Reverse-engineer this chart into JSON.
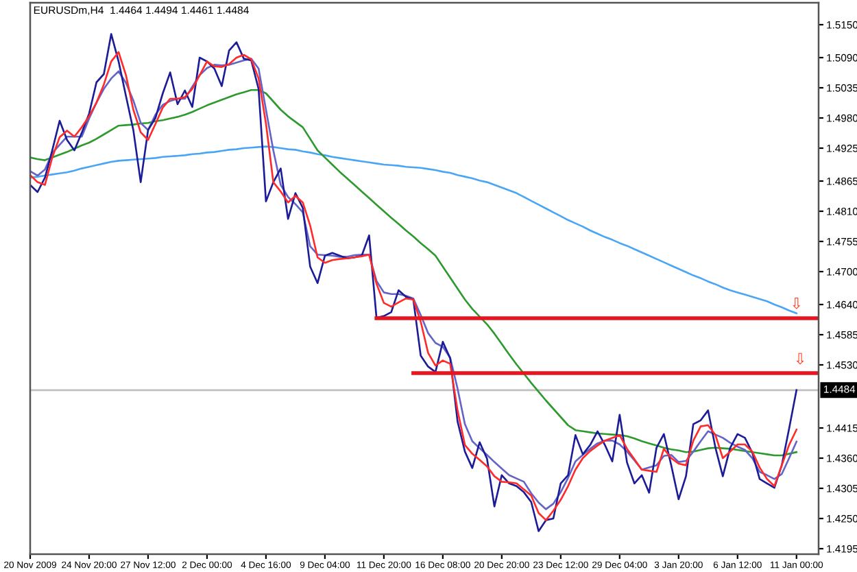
{
  "chart_data": {
    "type": "line",
    "title": "EURUSDm,H4  1.4464 1.4494 1.4461 1.4484",
    "categories": [
      "20 Nov 2009",
      null,
      null,
      null,
      null,
      null,
      null,
      null,
      "24 Nov 20:00",
      null,
      null,
      null,
      null,
      null,
      null,
      null,
      "27 Nov 12:00",
      null,
      null,
      null,
      null,
      null,
      null,
      null,
      "2 Dec 00:00",
      null,
      null,
      null,
      null,
      null,
      null,
      null,
      "4 Dec 16:00",
      null,
      null,
      null,
      null,
      null,
      null,
      null,
      "9 Dec 04:00",
      null,
      null,
      null,
      null,
      null,
      null,
      null,
      "11 Dec 20:00",
      null,
      null,
      null,
      null,
      null,
      null,
      null,
      "16 Dec 08:00",
      null,
      null,
      null,
      null,
      null,
      null,
      null,
      "20 Dec 20:00",
      null,
      null,
      null,
      null,
      null,
      null,
      null,
      "23 Dec 12:00",
      null,
      null,
      null,
      null,
      null,
      null,
      null,
      "29 Dec 04:00",
      null,
      null,
      null,
      null,
      null,
      null,
      null,
      "3 Jan 20:00",
      null,
      null,
      null,
      null,
      null,
      null,
      null,
      "6 Jan 12:00",
      null,
      null,
      null,
      null,
      null,
      null,
      null,
      "11 Jan 00:00",
      null,
      null,
      null
    ],
    "ylim": [
      1.4185,
      1.519
    ],
    "yticks": [
      {
        "value": 1.515,
        "label": "1.5150"
      },
      {
        "value": 1.509,
        "label": "1.5090"
      },
      {
        "value": 1.5035,
        "label": "1.5035"
      },
      {
        "value": 1.498,
        "label": "1.4980"
      },
      {
        "value": 1.4925,
        "label": "1.4925"
      },
      {
        "value": 1.4865,
        "label": "1.4865"
      },
      {
        "value": 1.481,
        "label": "1.4810"
      },
      {
        "value": 1.4755,
        "label": "1.4755"
      },
      {
        "value": 1.47,
        "label": "1.4700"
      },
      {
        "value": 1.464,
        "label": "1.4640"
      },
      {
        "value": 1.4585,
        "label": "1.4585"
      },
      {
        "value": 1.453,
        "label": "1.4530"
      },
      {
        "value": 1.4415,
        "label": "1.4415"
      },
      {
        "value": 1.436,
        "label": "1.4360"
      },
      {
        "value": 1.4305,
        "label": "1.4305"
      },
      {
        "value": 1.425,
        "label": "1.4250"
      },
      {
        "value": 1.4195,
        "label": "1.4195"
      }
    ],
    "series": [
      {
        "color": "#4aa6f5",
        "values": [
          1.4871,
          1.4873,
          1.4875,
          1.4877,
          1.4879,
          1.4881,
          1.4884,
          1.4888,
          1.4891,
          1.4894,
          1.4897,
          1.49,
          1.4902,
          1.4903,
          1.4904,
          1.4905,
          1.4906,
          1.4907,
          1.4909,
          1.491,
          1.4911,
          1.4912,
          1.4914,
          1.4915,
          1.4917,
          1.4918,
          1.492,
          1.4922,
          1.4923,
          1.4925,
          1.4926,
          1.4927,
          1.4928,
          1.4927,
          1.4925,
          1.4923,
          1.4922,
          1.4919,
          1.4917,
          1.4914,
          1.4912,
          1.4909,
          1.4907,
          1.4905,
          1.4903,
          1.4901,
          1.4899,
          1.4897,
          1.4895,
          1.4894,
          1.4893,
          1.4891,
          1.489,
          1.4889,
          1.4887,
          1.4885,
          1.4882,
          1.488,
          1.4876,
          1.4873,
          1.487,
          1.4866,
          1.4863,
          1.4858,
          1.4853,
          1.4848,
          1.4843,
          1.4836,
          1.4829,
          1.4822,
          1.4815,
          1.4808,
          1.4801,
          1.4794,
          1.4788,
          1.4782,
          1.4775,
          1.4769,
          1.4763,
          1.4758,
          1.4752,
          1.4747,
          1.4741,
          1.4735,
          1.4729,
          1.4723,
          1.4717,
          1.4711,
          1.4705,
          1.4699,
          1.4693,
          1.4688,
          1.4682,
          1.4677,
          1.4671,
          1.4666,
          1.4662,
          1.4658,
          1.4654,
          1.465,
          1.4646,
          1.464,
          1.4635,
          1.4629,
          1.4624,
          null,
          null,
          null
        ]
      },
      {
        "color": "#2e9a2e",
        "values": [
          1.4908,
          1.4905,
          1.4903,
          1.4908,
          1.4913,
          1.4918,
          1.4924,
          1.493,
          1.4935,
          1.4942,
          1.495,
          1.4958,
          1.4966,
          1.4967,
          1.4968,
          1.497,
          1.4971,
          1.4974,
          1.4976,
          1.4979,
          1.4982,
          1.4986,
          1.4991,
          1.4997,
          1.5003,
          1.5008,
          1.5013,
          1.5018,
          1.5023,
          1.5027,
          1.5031,
          1.5031,
          1.5025,
          1.501,
          1.4995,
          1.4983,
          1.4973,
          1.4963,
          1.4942,
          1.4921,
          1.4908,
          1.4895,
          1.4882,
          1.487,
          1.4858,
          1.4846,
          1.4834,
          1.4822,
          1.481,
          1.4798,
          1.4787,
          1.4775,
          1.4764,
          1.4752,
          1.4741,
          1.4729,
          1.4709,
          1.4689,
          1.4669,
          1.4649,
          1.4632,
          1.4618,
          1.4604,
          1.4587,
          1.4568,
          1.4549,
          1.4531,
          1.4514,
          1.4497,
          1.4481,
          1.4465,
          1.445,
          1.4435,
          1.442,
          1.4411,
          1.4409,
          1.4407,
          1.4405,
          1.4404,
          1.4403,
          1.4402,
          1.44,
          1.4396,
          1.4391,
          1.4387,
          1.4383,
          1.4379,
          1.4376,
          1.4374,
          1.4371,
          1.4372,
          1.4375,
          1.4378,
          1.4379,
          1.4378,
          1.4377,
          1.4375,
          1.4373,
          1.4371,
          1.4369,
          1.4367,
          1.4365,
          1.4365,
          1.4368,
          1.4371,
          null,
          null,
          null
        ]
      },
      {
        "color": "#6464c8",
        "values": [
          1.4883,
          1.4875,
          1.4886,
          1.4916,
          1.4931,
          1.4946,
          1.4946,
          1.4946,
          1.4979,
          1.5008,
          1.5033,
          1.5052,
          1.5065,
          1.5044,
          1.5012,
          1.4971,
          1.4958,
          1.4986,
          1.5004,
          1.5011,
          1.5015,
          1.5015,
          1.5037,
          1.5058,
          1.5071,
          1.5077,
          1.5076,
          1.5077,
          1.5081,
          1.5085,
          1.5088,
          1.507,
          1.4995,
          1.4921,
          1.4858,
          1.4836,
          1.4823,
          1.4808,
          1.4746,
          1.4731,
          1.473,
          1.4729,
          1.4727,
          1.4727,
          1.473,
          1.4731,
          1.4731,
          1.4683,
          1.4662,
          1.4659,
          1.4659,
          1.4656,
          1.4651,
          1.4621,
          1.4588,
          1.457,
          1.4563,
          1.4543,
          1.4487,
          1.4422,
          1.4391,
          1.4378,
          1.4366,
          1.4353,
          1.4341,
          1.4329,
          1.4323,
          1.4317,
          1.4296,
          1.4279,
          1.4267,
          1.4277,
          1.4298,
          1.4324,
          1.4354,
          1.4366,
          1.4377,
          1.4387,
          1.4392,
          1.4392,
          1.4385,
          1.4372,
          1.4356,
          1.4339,
          1.4343,
          1.4347,
          1.4364,
          1.4366,
          1.4353,
          1.4355,
          1.4372,
          1.4391,
          1.4409,
          1.4403,
          1.4397,
          1.4388,
          1.4381,
          1.4375,
          1.436,
          1.4335,
          1.4329,
          1.4322,
          1.4331,
          1.436,
          1.439,
          null,
          null,
          null
        ]
      },
      {
        "color": "#1c1c96",
        "values": [
          1.4858,
          1.4845,
          1.4871,
          1.4921,
          1.4975,
          1.494,
          1.4921,
          1.4953,
          1.4988,
          1.5045,
          1.506,
          1.5133,
          1.5083,
          1.502,
          1.4958,
          1.4863,
          1.4958,
          1.498,
          1.5025,
          1.5063,
          1.5005,
          1.503,
          1.5,
          1.509,
          1.5083,
          1.507,
          1.5038,
          1.5103,
          1.5118,
          1.5088,
          1.5085,
          1.5033,
          1.4828,
          1.4863,
          1.4888,
          1.4796,
          1.4843,
          1.4816,
          1.4709,
          1.4679,
          1.4729,
          1.4734,
          1.4729,
          1.4724,
          1.4726,
          1.4729,
          1.4766,
          1.4616,
          1.4619,
          1.4626,
          1.4666,
          1.4654,
          1.4649,
          1.4547,
          1.4527,
          1.4517,
          1.4572,
          1.4542,
          1.4427,
          1.4372,
          1.4342,
          1.4389,
          1.4359,
          1.4272,
          1.4329,
          1.4314,
          1.4309,
          1.4298,
          1.428,
          1.4227,
          1.4247,
          1.425,
          1.4314,
          1.4329,
          1.4402,
          1.4367,
          1.4384,
          1.4409,
          1.4384,
          1.4354,
          1.4439,
          1.4352,
          1.4314,
          1.4329,
          1.4297,
          1.4379,
          1.4404,
          1.4347,
          1.4285,
          1.4327,
          1.4422,
          1.4429,
          1.4447,
          1.4379,
          1.4327,
          1.4379,
          1.4404,
          1.4397,
          1.437,
          1.4322,
          1.4314,
          1.4306,
          1.4347,
          1.4414,
          1.4484,
          null,
          null,
          null
        ]
      },
      {
        "color": "#ff2a2a",
        "values": [
          1.4876,
          1.4863,
          1.4858,
          1.4908,
          1.4945,
          1.4957,
          1.4946,
          1.4963,
          1.4983,
          1.5008,
          1.5041,
          1.5083,
          1.51,
          1.5058,
          1.4995,
          1.4954,
          1.494,
          1.4969,
          1.4999,
          1.5015,
          1.5015,
          1.5018,
          1.5033,
          1.5058,
          1.5083,
          1.5074,
          1.5073,
          1.5078,
          1.509,
          1.5095,
          1.5087,
          1.5052,
          1.497,
          1.4863,
          1.4846,
          1.4826,
          1.4838,
          1.4826,
          1.4784,
          1.4726,
          1.4716,
          1.4721,
          1.4723,
          1.4724,
          1.4726,
          1.4728,
          1.4731,
          1.4678,
          1.4643,
          1.4636,
          1.4644,
          1.4651,
          1.4649,
          1.4609,
          1.4552,
          1.4529,
          1.4538,
          1.4532,
          1.4447,
          1.4384,
          1.4368,
          1.4357,
          1.4345,
          1.4327,
          1.4317,
          1.4316,
          1.4314,
          1.4303,
          1.4292,
          1.426,
          1.4247,
          1.4264,
          1.4284,
          1.4309,
          1.4339,
          1.436,
          1.4373,
          1.4383,
          1.4392,
          1.4397,
          1.4402,
          1.4377,
          1.4358,
          1.4339,
          1.4337,
          1.4335,
          1.4377,
          1.436,
          1.435,
          1.4347,
          1.4392,
          1.4418,
          1.442,
          1.4402,
          1.436,
          1.4372,
          1.4385,
          1.4385,
          1.4372,
          1.4343,
          1.4322,
          1.4309,
          1.4347,
          1.4384,
          1.4412,
          null,
          null,
          null
        ]
      },
      {
        "color": "#e8141e",
        "values": [
          null,
          null,
          null,
          null,
          null,
          null,
          null,
          null,
          null,
          null,
          null,
          null,
          null,
          null,
          null,
          null,
          null,
          null,
          null,
          null,
          null,
          null,
          null,
          null,
          null,
          null,
          null,
          null,
          null,
          null,
          null,
          null,
          null,
          null,
          null,
          null,
          null,
          null,
          null,
          null,
          null,
          null,
          null,
          null,
          null,
          null,
          null,
          1.4615,
          1.4615,
          1.4615,
          1.4615,
          1.4615,
          1.4615,
          1.4615,
          1.4615,
          1.4615,
          1.4615,
          1.4615,
          1.4615,
          1.4615,
          1.4615,
          1.4615,
          1.4615,
          1.4615,
          1.4615,
          1.4615,
          1.4615,
          1.4615,
          1.4615,
          1.4615,
          1.4615,
          1.4615,
          1.4615,
          1.4615,
          1.4615,
          1.4615,
          1.4615,
          1.4615,
          1.4615,
          1.4615,
          1.4615,
          1.4615,
          1.4615,
          1.4615,
          1.4615,
          1.4615,
          1.4615,
          1.4615,
          1.4615,
          1.4615,
          1.4615,
          1.4615,
          1.4615,
          1.4615,
          1.4615,
          1.4615,
          1.4615,
          1.4615,
          1.4615,
          1.4615,
          1.4615,
          1.4615,
          1.4615,
          1.4615,
          1.4615,
          1.4615,
          1.4615,
          1.4615
        ]
      },
      {
        "color": "#e8141e",
        "values": [
          null,
          null,
          null,
          null,
          null,
          null,
          null,
          null,
          null,
          null,
          null,
          null,
          null,
          null,
          null,
          null,
          null,
          null,
          null,
          null,
          null,
          null,
          null,
          null,
          null,
          null,
          null,
          null,
          null,
          null,
          null,
          null,
          null,
          null,
          null,
          null,
          null,
          null,
          null,
          null,
          null,
          null,
          null,
          null,
          null,
          null,
          null,
          null,
          null,
          null,
          null,
          null,
          1.4515,
          1.4515,
          1.4515,
          1.4515,
          1.4515,
          1.4515,
          1.4515,
          1.4515,
          1.4515,
          1.4515,
          1.4515,
          1.4515,
          1.4515,
          1.4515,
          1.4515,
          1.4515,
          1.4515,
          1.4515,
          1.4515,
          1.4515,
          1.4515,
          1.4515,
          1.4515,
          1.4515,
          1.4515,
          1.4515,
          1.4515,
          1.4515,
          1.4515,
          1.4515,
          1.4515,
          1.4515,
          1.4515,
          1.4515,
          1.4515,
          1.4515,
          1.4515,
          1.4515,
          1.4515,
          1.4515,
          1.4515,
          1.4515,
          1.4515,
          1.4515,
          1.4515,
          1.4515,
          1.4515,
          1.4515,
          1.4515,
          1.4515,
          1.4515,
          1.4515,
          1.4515,
          1.4515,
          1.4515,
          1.4515
        ]
      }
    ],
    "ref_lines": [
      {
        "axis": "y",
        "value": 1.4484,
        "label": "1.4484",
        "color": "#c0c0c0"
      }
    ],
    "annotations": [
      "⇩",
      "⇩"
    ]
  }
}
